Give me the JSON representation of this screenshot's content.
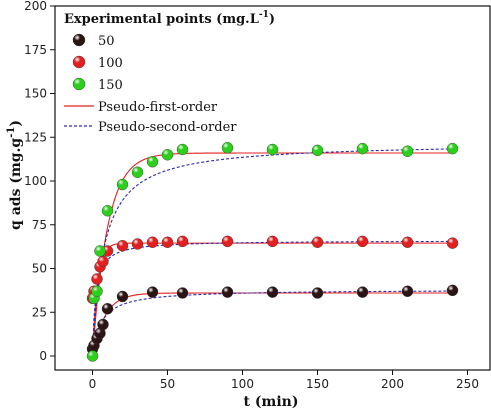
{
  "chart_data": {
    "type": "scatter",
    "xlabel": "t (min)",
    "ylabel": "q ads (mg.g",
    "ylabel_sup": "-1",
    "ylabel_close": ")",
    "xlim": [
      -25,
      265
    ],
    "ylim": [
      -8,
      200
    ],
    "x_ticks": [
      0,
      50,
      100,
      150,
      200,
      250
    ],
    "y_ticks": [
      0,
      25,
      50,
      75,
      100,
      125,
      150,
      175,
      200
    ],
    "legend": {
      "title": "Experimental points (mg.L",
      "title_sup": "-1",
      "title_close": ")",
      "placement": "top-left"
    },
    "series": [
      {
        "name": "50",
        "kind": "points",
        "color": "#2a1414",
        "x": [
          0,
          1,
          3,
          5,
          7,
          10,
          20,
          40,
          60,
          90,
          120,
          150,
          180,
          210,
          240
        ],
        "y": [
          4,
          6,
          10,
          13,
          18,
          27,
          34,
          36.5,
          36,
          36.5,
          36.5,
          36,
          36.5,
          37,
          37.5
        ]
      },
      {
        "name": "100",
        "kind": "points",
        "color": "#e32020",
        "x": [
          0,
          1,
          3,
          5,
          7,
          10,
          20,
          30,
          40,
          50,
          60,
          90,
          120,
          150,
          180,
          210,
          240
        ],
        "y": [
          33,
          37,
          44,
          51,
          54,
          60,
          63,
          64,
          65,
          65,
          65.5,
          65.5,
          65.5,
          65,
          65.5,
          65,
          64.5
        ]
      },
      {
        "name": "150",
        "kind": "points",
        "color": "#2ccf1c",
        "x": [
          0,
          1,
          3,
          5,
          10,
          20,
          30,
          40,
          50,
          60,
          90,
          120,
          150,
          180,
          210,
          240
        ],
        "y": [
          0,
          33,
          37,
          60,
          83,
          98,
          105,
          111,
          115,
          118,
          119,
          118,
          117.5,
          118.5,
          117,
          118.5
        ]
      },
      {
        "name": "Pseudo-first-order",
        "kind": "line",
        "color": "#e32020",
        "dash": "none",
        "curves": [
          {
            "qe": 36,
            "k": 0.12
          },
          {
            "qe": 64.5,
            "k": 0.3
          },
          {
            "qe": 116,
            "k": 0.1
          }
        ]
      },
      {
        "name": "Pseudo-second-order",
        "kind": "line",
        "color": "#2b2bb0",
        "dash": "3,2",
        "curves": [
          {
            "qe": 38,
            "k": 0.0045
          },
          {
            "qe": 66,
            "k": 0.0075
          },
          {
            "qe": 122,
            "k": 0.0011
          }
        ]
      }
    ]
  }
}
